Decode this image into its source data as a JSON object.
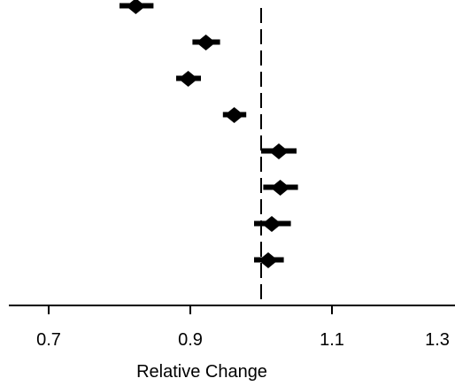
{
  "chart_data": {
    "type": "scatter",
    "title": "",
    "xlabel": "Relative Change",
    "ylabel": "",
    "xlim": [
      0.6,
      1.32
    ],
    "x_ticks": [
      0.7,
      0.9,
      1.1,
      1.3
    ],
    "x_tick_labels": [
      "0.7",
      "0.9",
      "1.1",
      "1.3"
    ],
    "reference_line": 1.0,
    "reference_style": "dashed",
    "legend": "none",
    "grid": false,
    "points": [
      {
        "value": 0.823,
        "lower": 0.8,
        "upper": 0.848
      },
      {
        "value": 0.922,
        "lower": 0.903,
        "upper": 0.942
      },
      {
        "value": 0.897,
        "lower": 0.88,
        "upper": 0.915
      },
      {
        "value": 0.962,
        "lower": 0.946,
        "upper": 0.979
      },
      {
        "value": 1.025,
        "lower": 1.0,
        "upper": 1.05
      },
      {
        "value": 1.027,
        "lower": 1.003,
        "upper": 1.052
      },
      {
        "value": 1.015,
        "lower": 0.99,
        "upper": 1.042
      },
      {
        "value": 1.01,
        "lower": 0.99,
        "upper": 1.032
      }
    ],
    "marker": "diamond",
    "marker_color": "#000000"
  }
}
